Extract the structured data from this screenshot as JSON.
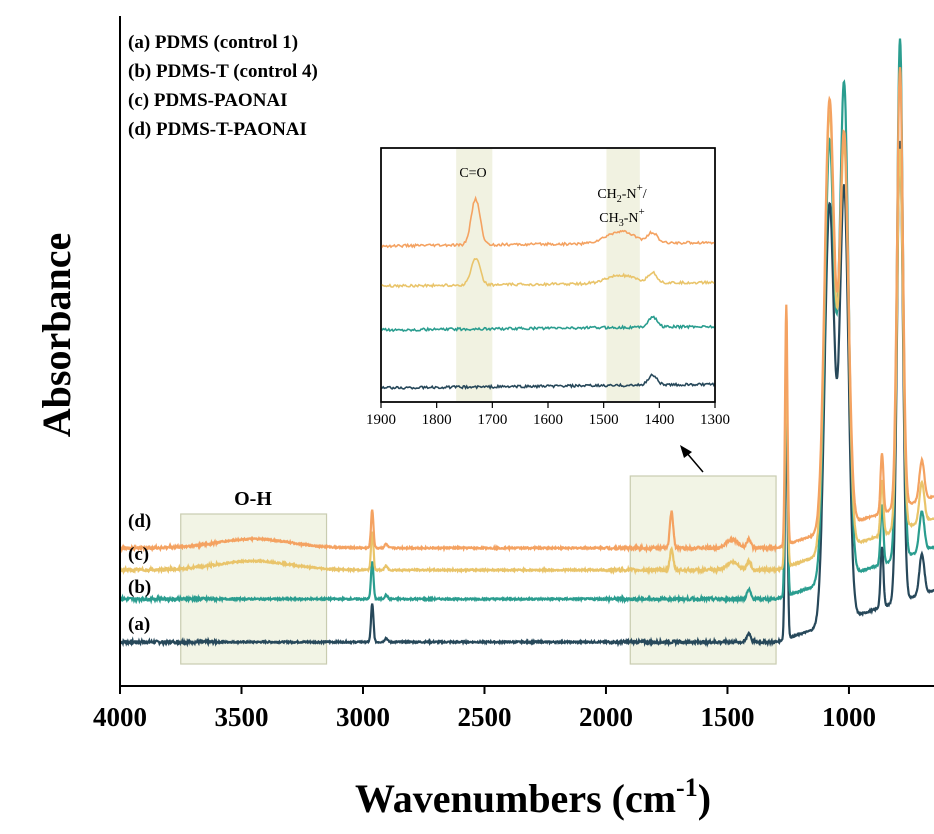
{
  "chart_data": {
    "type": "line",
    "xlabel": "Wavenumbers (cm",
    "xlabel_sup": "-1",
    "xlabel_tail": ")",
    "ylabel": "Absorbance",
    "xlim": [
      4000,
      650
    ],
    "x_reversed": true,
    "xticks": [
      4000,
      3500,
      3000,
      2500,
      2000,
      1500,
      1000
    ],
    "yticks_visible": false,
    "grid": false,
    "legend": {
      "placement": "top-left",
      "entries": [
        "(a) PDMS (control 1)",
        "(b) PDMS-T (control 4)",
        "(c) PDMS-PAONAI",
        "(d) PDMS-T-PAONAI"
      ]
    },
    "series": [
      {
        "tag": "(a)",
        "color": "#27485a"
      },
      {
        "tag": "(b)",
        "color": "#2a9d8f"
      },
      {
        "tag": "(c)",
        "color": "#e9c46a"
      },
      {
        "tag": "(d)",
        "color": "#f4a261"
      }
    ],
    "regions": [
      {
        "label": "O-H",
        "x_range": [
          3750,
          3150
        ]
      },
      {
        "label": "",
        "x_range": [
          1900,
          1300
        ]
      }
    ],
    "inset": {
      "xlim": [
        1900,
        1300
      ],
      "xticks": [
        1900,
        1800,
        1700,
        1600,
        1500,
        1400,
        1300
      ],
      "bands": [
        {
          "label": "C=O",
          "x_range": [
            1765,
            1700
          ]
        },
        {
          "label_line1": "CH",
          "label_line1_sub": "2",
          "label_line1_tail": "-N",
          "label_line1_sup": "+",
          "label_line1_end": "/",
          "label_line2": "CH",
          "label_line2_sub": "3",
          "label_line2_tail": "-N",
          "label_line2_sup": "+",
          "x_range": [
            1495,
            1435
          ]
        }
      ]
    }
  }
}
